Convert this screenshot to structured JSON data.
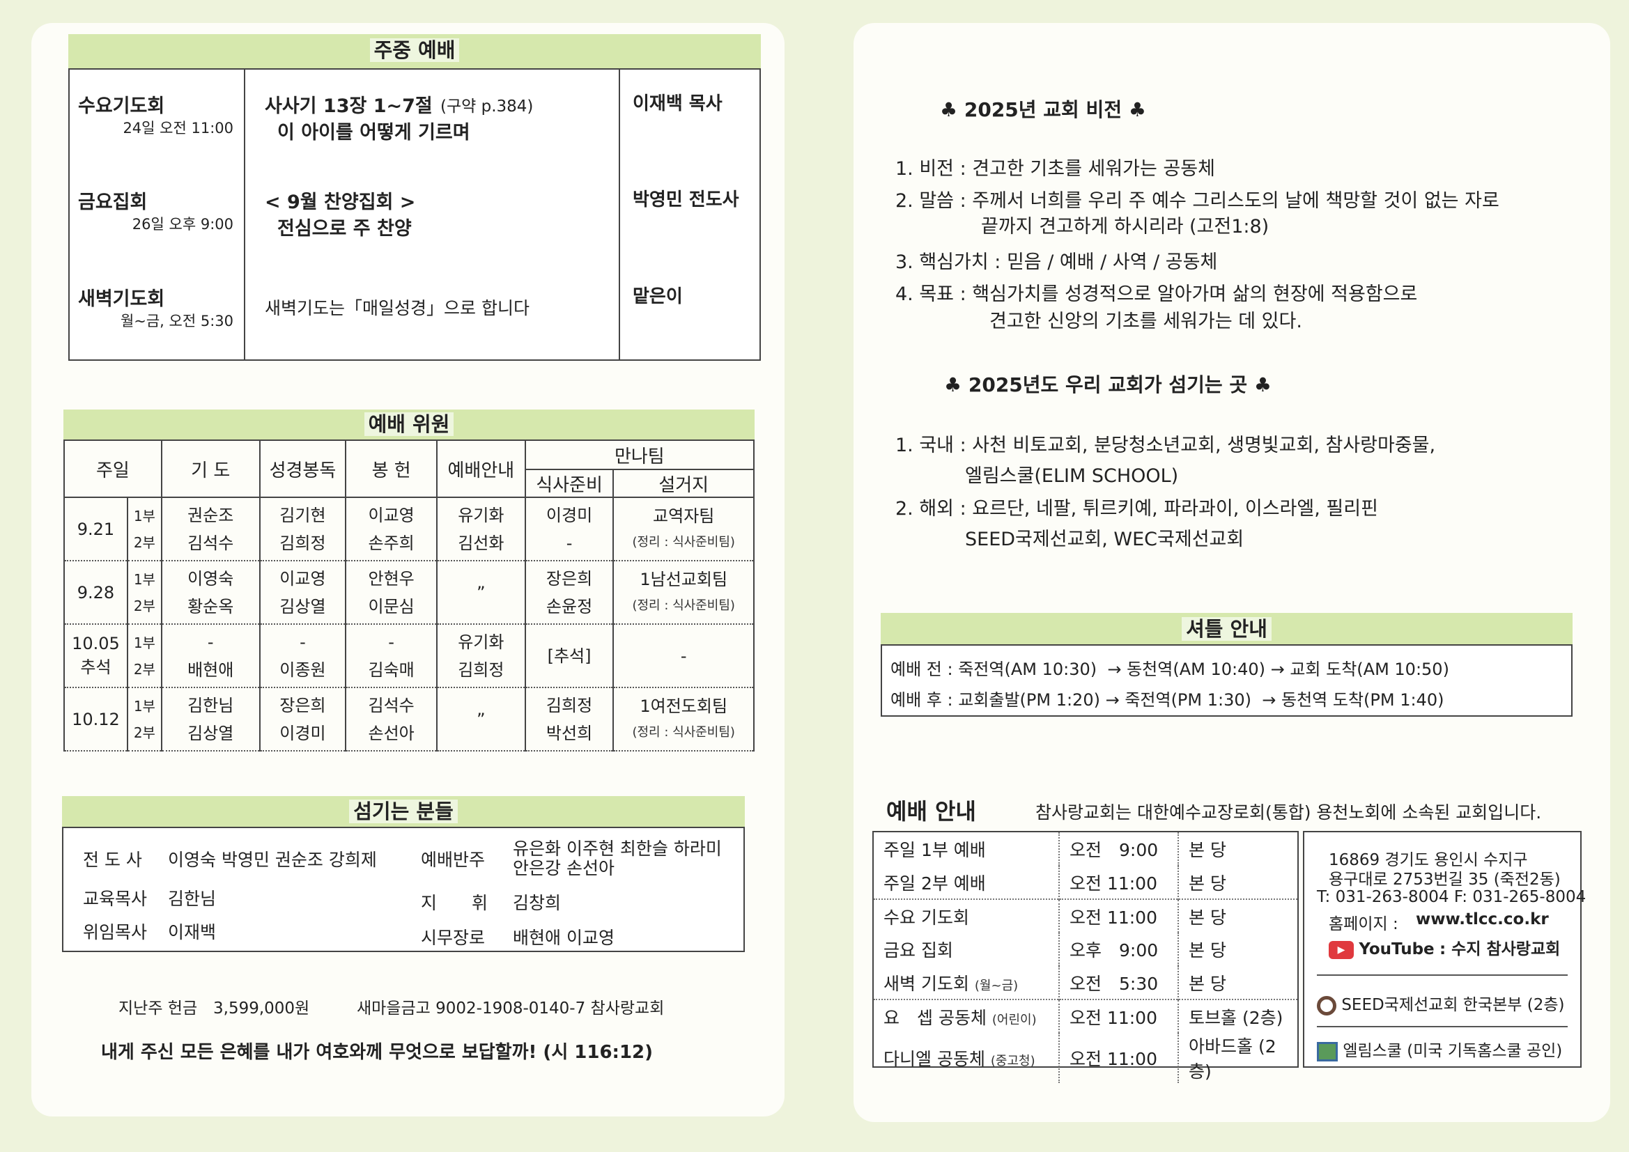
{
  "weekly": {
    "title": "주중 예배",
    "rows": [
      {
        "name": "수요기도회",
        "time": "24일 오전 11:00",
        "line1": "사사기 13장 1~7절",
        "ref": "(구약 p.384)",
        "line2": "이 아이를 어떻게 기르며",
        "leader": "이재백 목사"
      },
      {
        "name": "금요집회",
        "time": "26일 오후 9:00",
        "line1": "< 9월 찬양집회 >",
        "ref": "",
        "line2": "전심으로 주 찬양",
        "leader": "박영민 전도사"
      },
      {
        "name": "새벽기도회",
        "time": "월~금, 오전 5:30",
        "line1": "새벽기도는「매일성경」으로 합니다",
        "ref": "",
        "line2": "",
        "leader": "맡은이"
      }
    ]
  },
  "committee": {
    "title": "예배 위원",
    "headers": {
      "day": "주일",
      "prayer": "기 도",
      "reading": "성경봉독",
      "offering": "봉 헌",
      "usher": "예배안내",
      "manna": "만나팀",
      "meal": "식사준비",
      "dishes": "설거지"
    },
    "rows": [
      {
        "date": "9.21",
        "date2": "",
        "s1": "1부",
        "s2": "2부",
        "prayer": [
          "권순조",
          "김석수"
        ],
        "reading": [
          "김기현",
          "김희정"
        ],
        "offering": [
          "이교영",
          "손주희"
        ],
        "usher": [
          "유기화",
          "김선화"
        ],
        "meal": [
          "이경미",
          "-"
        ],
        "dishes": "교역자팀",
        "note": "(정리 : 식사준비팀)"
      },
      {
        "date": "9.28",
        "date2": "",
        "s1": "1부",
        "s2": "2부",
        "prayer": [
          "이영숙",
          "황순옥"
        ],
        "reading": [
          "이교영",
          "김상열"
        ],
        "offering": [
          "안현우",
          "이문심"
        ],
        "usher": [
          "”",
          ""
        ],
        "meal": [
          "장은희",
          "손윤정"
        ],
        "dishes": "1남선교회팀",
        "note": "(정리 : 식사준비팀)"
      },
      {
        "date": "10.05",
        "date2": "추석",
        "s1": "1부",
        "s2": "2부",
        "prayer": [
          "-",
          "배현애"
        ],
        "reading": [
          "-",
          "이종원"
        ],
        "offering": [
          "-",
          "김숙매"
        ],
        "usher": [
          "유기화",
          "김희정"
        ],
        "meal": [
          "[추석]",
          ""
        ],
        "dishes": "-",
        "note": ""
      },
      {
        "date": "10.12",
        "date2": "",
        "s1": "1부",
        "s2": "2부",
        "prayer": [
          "김한님",
          "김상열"
        ],
        "reading": [
          "장은희",
          "이경미"
        ],
        "offering": [
          "김석수",
          "손선아"
        ],
        "usher": [
          "”",
          ""
        ],
        "meal": [
          "김희정",
          "박선희"
        ],
        "dishes": "1여전도회팀",
        "note": "(정리 : 식사준비팀)"
      }
    ]
  },
  "servants": {
    "title": "섬기는 분들",
    "left": [
      {
        "role": "전 도 사",
        "names": "이영숙 박영민 권순조 강희제"
      },
      {
        "role": "교육목사",
        "names": "김한님"
      },
      {
        "role": "위임목사",
        "names": "이재백"
      }
    ],
    "right": [
      {
        "role": "예배반주",
        "names": "유은화 이주현 최한슬 하라미",
        "names2": "안은강 손선아"
      },
      {
        "role": "지　　휘",
        "names": "김창희"
      },
      {
        "role": "시무장로",
        "names": "배현애 이교영"
      }
    ]
  },
  "offering": {
    "label": "지난주 헌금",
    "amount": "3,599,000원",
    "account": "새마을금고 9002-1908-0140-7 참사랑교회"
  },
  "verse": "내게 주신 모든 은혜를 내가 여호와께 무엇으로 보답할까! (시 116:12)",
  "vision": {
    "title": "♣ 2025년 교회 비전 ♣",
    "items": [
      {
        "label": "1. 비전 : 견고한 기초를 세워가는 공동체",
        "cont": ""
      },
      {
        "label": "2. 말씀 : 주께서 너희를 우리 주 예수 그리스도의 날에 책망할 것이 없는 자로",
        "cont": "끝까지 견고하게 하시리라 (고전1:8)"
      },
      {
        "label": "3. 핵심가치 : 믿음 / 예배 / 사역 / 공동체",
        "cont": ""
      },
      {
        "label": "4. 목표 : 핵심가치를 성경적으로 알아가며 삶의 현장에 적용함으로",
        "cont": "견고한 신앙의 기초를 세워가는 데 있다."
      }
    ]
  },
  "mission": {
    "title": "♣ 2025년도 우리 교회가 섬기는 곳 ♣",
    "items": [
      {
        "label": "1. 국내 : 사천 비토교회, 분당청소년교회, 생명빛교회, 참사랑마중물,",
        "cont": "엘림스쿨(ELIM SCHOOL)"
      },
      {
        "label": "2. 해외 : 요르단, 네팔, 튀르키예, 파라과이, 이스라엘, 필리핀",
        "cont": "SEED국제선교회, WEC국제선교회"
      }
    ]
  },
  "shuttle": {
    "title": "셔틀 안내",
    "before": "예배 전 : 죽전역(AM 10:30)  → 동천역(AM 10:40) → 교회 도착(AM 10:50)",
    "after": "예배 후 : 교회출발(PM 1:20) → 죽전역(PM 1:30)  → 동천역 도착(PM 1:40)"
  },
  "guide": {
    "title": "예배 안내",
    "affiliation": "참사랑교회는 대한예수교장로회(통합) 용천노회에 소속된 교회입니다.",
    "rows": [
      {
        "name": "주일 1부 예배",
        "note": "",
        "time": "오전　9:00",
        "place": "본 당",
        "grp": false
      },
      {
        "name": "주일 2부 예배",
        "note": "",
        "time": "오전 11:00",
        "place": "본 당",
        "grp": false
      },
      {
        "name": "수요 기도회",
        "note": "",
        "time": "오전 11:00",
        "place": "본 당",
        "grp": true
      },
      {
        "name": "금요 집회",
        "note": "",
        "time": "오후　9:00",
        "place": "본 당",
        "grp": false
      },
      {
        "name": "새벽 기도회",
        "note": "(월~금)",
        "time": "오전　5:30",
        "place": "본 당",
        "grp": false
      },
      {
        "name": "요　셉 공동체",
        "note": "(어린이)",
        "time": "오전 11:00",
        "place": "토브홀 (2층)",
        "grp": true
      },
      {
        "name": "다니엘 공동체",
        "note": "(중고청)",
        "time": "오전 11:00",
        "place": "아바드홀 (2층)",
        "grp": false
      }
    ],
    "address1": "16869 경기도 용인시 수지구",
    "address2": "용구대로 2753번길 35 (죽전2동)",
    "phone": "T: 031-263-8004 F: 031-265-8004",
    "homepage_label": "홈페이지 :",
    "homepage": "www.tlcc.co.kr",
    "youtube_label": "YouTube",
    "youtube_channel": ": 수지 참사랑교회",
    "seed": "SEED국제선교회 한국본부 (2층)",
    "elim": "엘림스쿨 (미국 기독홈스쿨 공인)",
    "youtube_color": "#e0393e"
  }
}
